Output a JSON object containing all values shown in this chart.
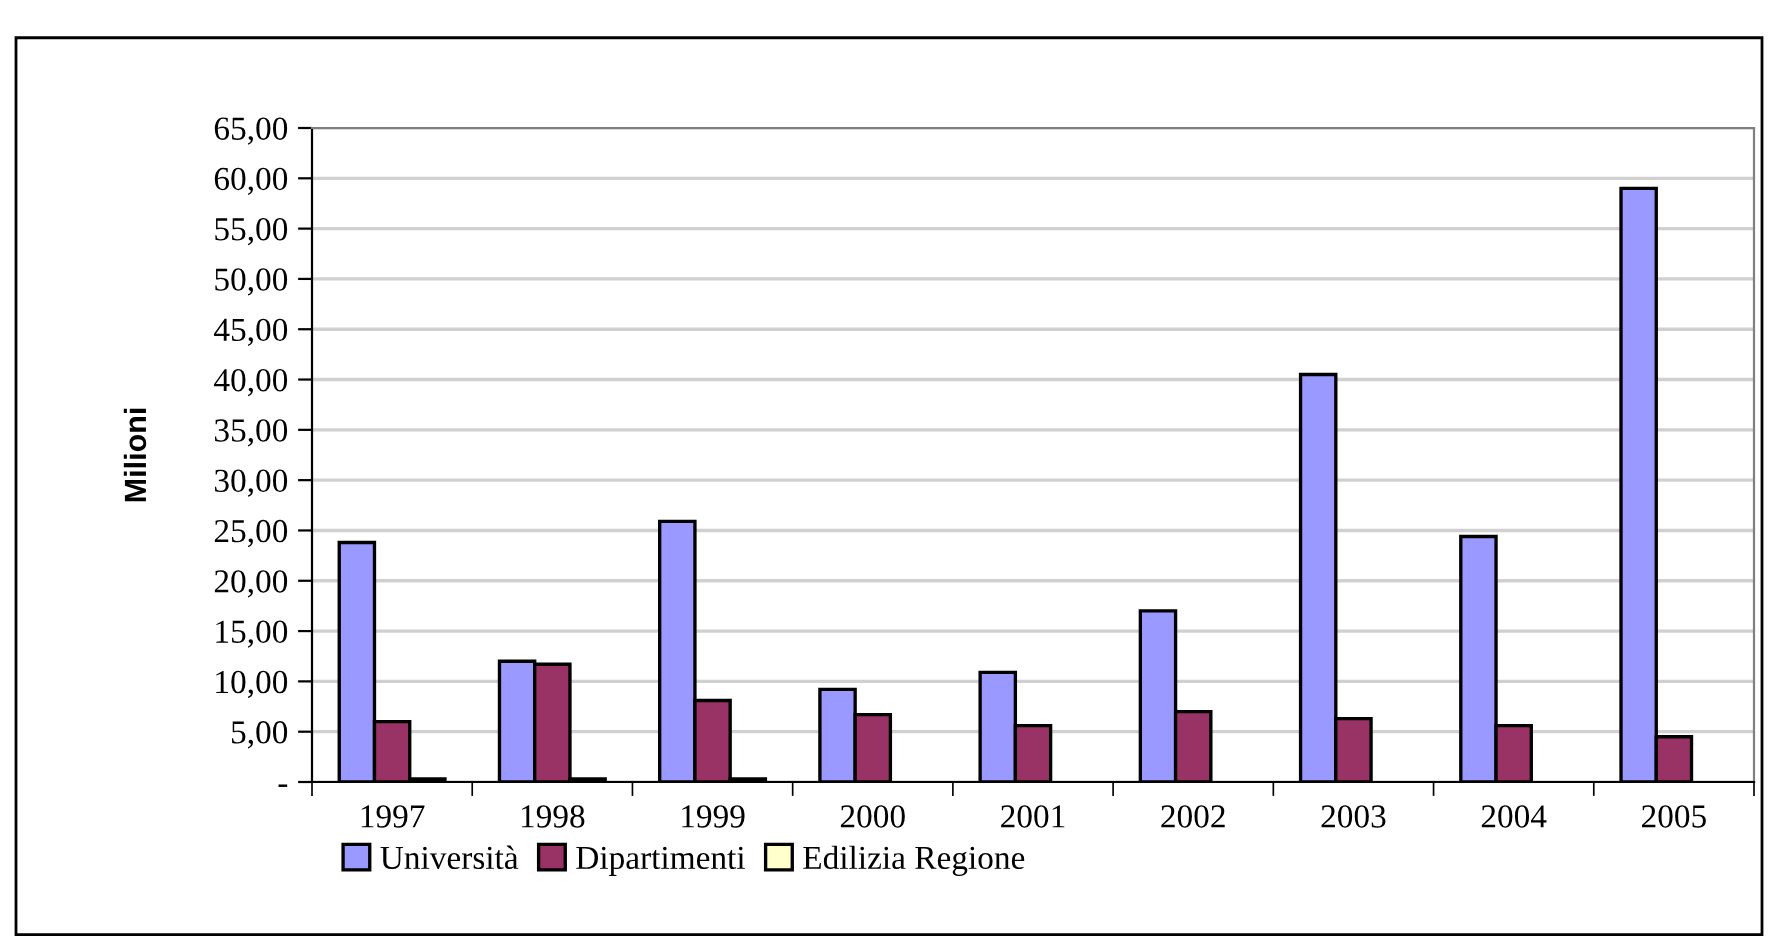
{
  "chart_data": {
    "type": "bar",
    "ylabel": "Milioni",
    "categories": [
      "1997",
      "1998",
      "1999",
      "2000",
      "2001",
      "2002",
      "2003",
      "2004",
      "2005"
    ],
    "series": [
      {
        "name": "Università",
        "color": "#9999ff",
        "values": [
          23.8,
          12.0,
          25.9,
          9.2,
          10.9,
          17.0,
          40.5,
          24.4,
          59.0
        ]
      },
      {
        "name": "Dipartimenti",
        "color": "#993366",
        "values": [
          6.0,
          11.7,
          8.1,
          6.7,
          5.6,
          7.0,
          6.3,
          5.6,
          4.5
        ]
      },
      {
        "name": "Edilizia Regione",
        "color": "#ffffcc",
        "values": [
          0.3,
          0.3,
          0.3,
          null,
          null,
          null,
          null,
          null,
          null
        ]
      }
    ],
    "ylim": [
      0,
      65
    ],
    "yticks": [
      {
        "value": 0,
        "label": "-"
      },
      {
        "value": 5,
        "label": "5,00"
      },
      {
        "value": 10,
        "label": "10,00"
      },
      {
        "value": 15,
        "label": "15,00"
      },
      {
        "value": 20,
        "label": "20,00"
      },
      {
        "value": 25,
        "label": "25,00"
      },
      {
        "value": 30,
        "label": "30,00"
      },
      {
        "value": 35,
        "label": "35,00"
      },
      {
        "value": 40,
        "label": "40,00"
      },
      {
        "value": 45,
        "label": "45,00"
      },
      {
        "value": 50,
        "label": "50,00"
      },
      {
        "value": 55,
        "label": "55,00"
      },
      {
        "value": 60,
        "label": "60,00"
      },
      {
        "value": 65,
        "label": "65,00"
      }
    ],
    "grid": "y",
    "legend": "bottom left"
  }
}
